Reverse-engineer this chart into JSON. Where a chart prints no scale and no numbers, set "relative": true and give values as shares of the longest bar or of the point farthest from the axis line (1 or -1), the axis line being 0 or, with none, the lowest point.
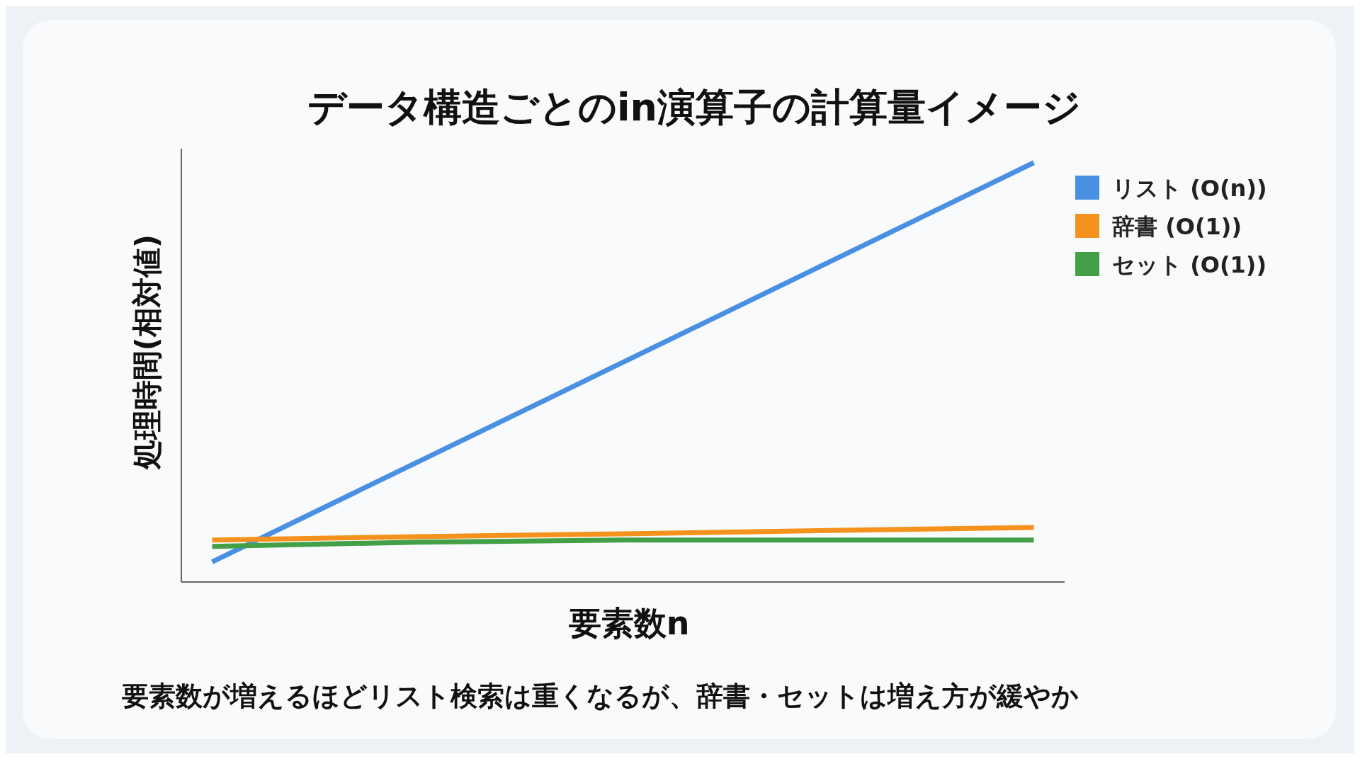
{
  "chart_data": {
    "type": "line",
    "title": "データ構造ごとのin演算子の計算量イメージ",
    "xlabel": "要素数n",
    "ylabel": "処理時間(相対値)",
    "relative": true,
    "categories": [
      null,
      null,
      null,
      null,
      null
    ],
    "series": [
      {
        "name": "リスト (O(n))",
        "color": "#4a90e2",
        "values": [
          0.048,
          0.286,
          0.524,
          0.762,
          1
        ]
      },
      {
        "name": "辞書 (O(1))",
        "color": "#f5921e",
        "values": [
          0.1,
          0.108,
          0.115,
          0.123,
          0.13
        ]
      },
      {
        "name": "セット (O(1))",
        "color": "#43a047",
        "values": [
          0.085,
          0.095,
          0.1,
          0.1,
          0.1
        ]
      }
    ],
    "legend": "top right",
    "marker": "none",
    "line_style": "solid",
    "annotations": [
      "要素数が増えるほどリスト検索は重くなるが、辞書・セットは増え方が緩やか"
    ]
  }
}
